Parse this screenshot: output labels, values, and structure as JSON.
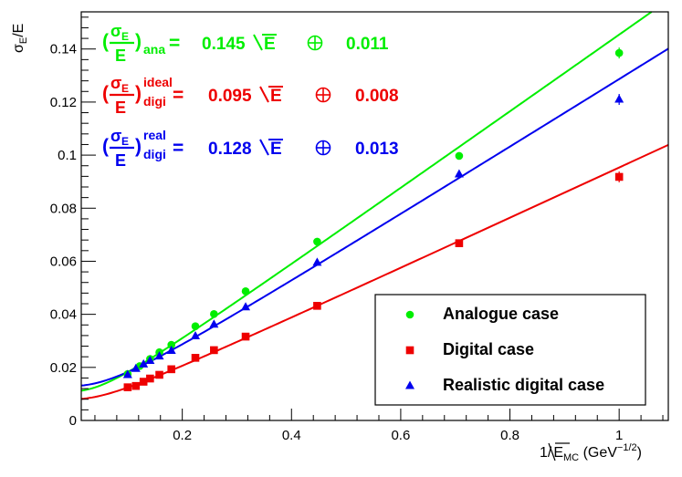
{
  "chart_data": {
    "type": "scatter",
    "title": "",
    "xlabel": {
      "prefix": "1/",
      "sym": "E",
      "sub": "MC",
      "unit_open": " (GeV",
      "exp": "−1/2",
      "unit_close": ")"
    },
    "ylabel": {
      "sym": "σ",
      "sub": "E",
      "rest": "/E"
    },
    "xlim": [
      0.015,
      1.09
    ],
    "ylim": [
      0,
      0.154
    ],
    "xticks": [
      0.2,
      0.4,
      0.6,
      0.8,
      1
    ],
    "xtick_labels": [
      "0.2",
      "0.4",
      "0.6",
      "0.8",
      "1"
    ],
    "yticks": [
      0,
      0.02,
      0.04,
      0.06,
      0.08,
      0.1,
      0.12,
      0.14
    ],
    "ytick_labels": [
      "0",
      "0.02",
      "0.04",
      "0.06",
      "0.08",
      "0.1",
      "0.12",
      "0.14"
    ],
    "legend_position": "bottom-right",
    "series": [
      {
        "name": "Analogue case",
        "color": "#00ee00",
        "marker": "circle",
        "x": [
          0.1,
          0.122,
          0.141,
          0.158,
          0.18,
          0.224,
          0.258,
          0.316,
          0.447,
          0.707,
          1.0
        ],
        "y": [
          0.0175,
          0.0205,
          0.0232,
          0.0257,
          0.0285,
          0.0355,
          0.0401,
          0.0487,
          0.0674,
          0.0997,
          0.1385
        ],
        "fit": {
          "a": 0.145,
          "b": 0.011
        }
      },
      {
        "name": "Digital case",
        "color": "#ee0000",
        "marker": "square",
        "x": [
          0.1,
          0.115,
          0.129,
          0.141,
          0.158,
          0.18,
          0.224,
          0.258,
          0.316,
          0.447,
          0.707,
          1.0
        ],
        "y": [
          0.0125,
          0.013,
          0.0146,
          0.0158,
          0.0172,
          0.0193,
          0.0236,
          0.0265,
          0.0316,
          0.0432,
          0.0668,
          0.0918
        ],
        "fit": {
          "a": 0.095,
          "b": 0.008
        }
      },
      {
        "name": "Realistic digital case",
        "color": "#0000ee",
        "marker": "triangle",
        "x": [
          0.1,
          0.115,
          0.129,
          0.141,
          0.158,
          0.18,
          0.224,
          0.258,
          0.316,
          0.447,
          0.707,
          1.0
        ],
        "y": [
          0.0172,
          0.0195,
          0.0212,
          0.0225,
          0.0242,
          0.0263,
          0.0318,
          0.0362,
          0.0427,
          0.0595,
          0.0928,
          0.121
        ],
        "fit": {
          "a": 0.128,
          "b": 0.013
        }
      }
    ],
    "annotations": [
      {
        "series": 0,
        "num": "σ",
        "num_sub": "E",
        "den": "E",
        "sup": "",
        "sub": "ana",
        "coef": "0.145",
        "const": "0.011"
      },
      {
        "series": 1,
        "num": "σ",
        "num_sub": "E",
        "den": "E",
        "sup": "ideal",
        "sub": "digi",
        "coef": "0.095",
        "const": "0.008"
      },
      {
        "series": 2,
        "num": "σ",
        "num_sub": "E",
        "den": "E",
        "sup": "real",
        "sub": "digi",
        "coef": "0.128",
        "const": "0.013"
      }
    ]
  }
}
